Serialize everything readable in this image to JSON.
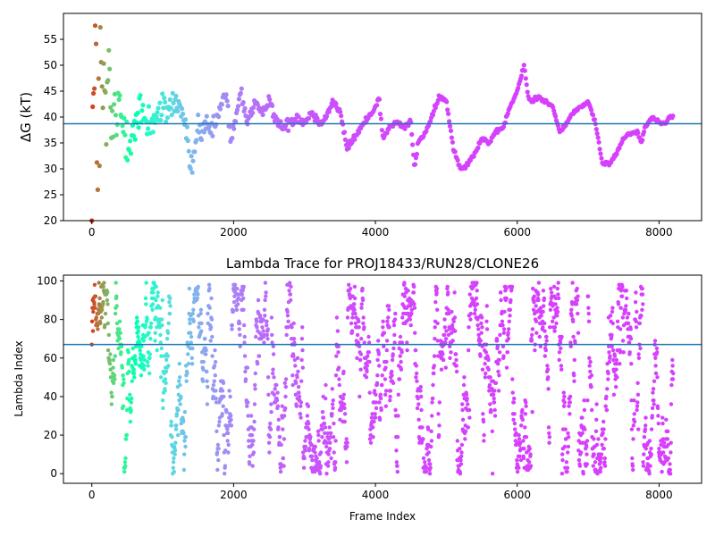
{
  "chart_data": [
    {
      "type": "scatter",
      "title": "",
      "xlabel": "",
      "ylabel": "ΔG (kT)",
      "xlim": [
        -400,
        8600
      ],
      "ylim": [
        20,
        60
      ],
      "xticks": [
        0,
        2000,
        4000,
        6000,
        8000
      ],
      "yticks": [
        20,
        25,
        30,
        35,
        40,
        45,
        50,
        55
      ],
      "hline": 38.7,
      "colormap": "rainbow (early frames red/orange → cyan → late frames violet)",
      "frames_max": 8200,
      "trace": [
        [
          0,
          40
        ],
        [
          60,
          41
        ],
        [
          120,
          42
        ],
        [
          200,
          42
        ],
        [
          300,
          39
        ],
        [
          400,
          40
        ],
        [
          500,
          38
        ],
        [
          600,
          37
        ],
        [
          700,
          41
        ],
        [
          800,
          39
        ],
        [
          900,
          40
        ],
        [
          1000,
          41
        ],
        [
          1100,
          42
        ],
        [
          1200,
          43
        ],
        [
          1300,
          40
        ],
        [
          1400,
          30
        ],
        [
          1450,
          33
        ],
        [
          1500,
          39
        ],
        [
          1550,
          36
        ],
        [
          1600,
          38
        ],
        [
          1700,
          37
        ],
        [
          1800,
          41
        ],
        [
          1900,
          45
        ],
        [
          1950,
          36
        ],
        [
          2000,
          37
        ],
        [
          2100,
          45
        ],
        [
          2200,
          39
        ],
        [
          2300,
          43
        ],
        [
          2400,
          40
        ],
        [
          2500,
          44
        ],
        [
          2600,
          39
        ],
        [
          2700,
          38
        ],
        [
          2800,
          39
        ],
        [
          2900,
          40
        ],
        [
          3000,
          39
        ],
        [
          3100,
          41
        ],
        [
          3200,
          39
        ],
        [
          3300,
          40
        ],
        [
          3400,
          43
        ],
        [
          3500,
          41
        ],
        [
          3600,
          34
        ],
        [
          3700,
          36
        ],
        [
          3800,
          38
        ],
        [
          3900,
          40
        ],
        [
          4000,
          42
        ],
        [
          4050,
          44
        ],
        [
          4100,
          36
        ],
        [
          4200,
          38
        ],
        [
          4300,
          39
        ],
        [
          4400,
          38
        ],
        [
          4500,
          39
        ],
        [
          4550,
          30
        ],
        [
          4600,
          35
        ],
        [
          4700,
          37
        ],
        [
          4800,
          40
        ],
        [
          4900,
          44
        ],
        [
          5000,
          43
        ],
        [
          5100,
          34
        ],
        [
          5200,
          30
        ],
        [
          5300,
          31
        ],
        [
          5400,
          33
        ],
        [
          5500,
          36
        ],
        [
          5600,
          35
        ],
        [
          5700,
          37
        ],
        [
          5800,
          38
        ],
        [
          5900,
          42
        ],
        [
          6000,
          45
        ],
        [
          6100,
          50
        ],
        [
          6150,
          44
        ],
        [
          6200,
          43
        ],
        [
          6300,
          44
        ],
        [
          6400,
          43
        ],
        [
          6500,
          42
        ],
        [
          6600,
          37
        ],
        [
          6700,
          39
        ],
        [
          6800,
          41
        ],
        [
          6900,
          42
        ],
        [
          7000,
          43
        ],
        [
          7100,
          39
        ],
        [
          7200,
          31
        ],
        [
          7300,
          31
        ],
        [
          7400,
          33
        ],
        [
          7500,
          36
        ],
        [
          7600,
          37
        ],
        [
          7700,
          37
        ],
        [
          7750,
          35
        ],
        [
          7800,
          38
        ],
        [
          7900,
          40
        ],
        [
          8000,
          39
        ],
        [
          8100,
          39
        ],
        [
          8150,
          40
        ]
      ]
    },
    {
      "type": "scatter",
      "title": "Lambda Trace for PROJ18433/RUN28/CLONE26",
      "xlabel": "Frame Index",
      "ylabel": "Lambda Index",
      "xlim": [
        -400,
        8600
      ],
      "ylim": [
        -5,
        103
      ],
      "xticks": [
        0,
        2000,
        4000,
        6000,
        8000
      ],
      "yticks": [
        0,
        20,
        40,
        60,
        80,
        100
      ],
      "hline": 67,
      "colormap": "rainbow (early frames red/orange → cyan → late frames violet)",
      "frames_max": 8200,
      "points_distribution": "dense vertical streaks of points spanning lambda index 0–100 across all frames"
    }
  ]
}
